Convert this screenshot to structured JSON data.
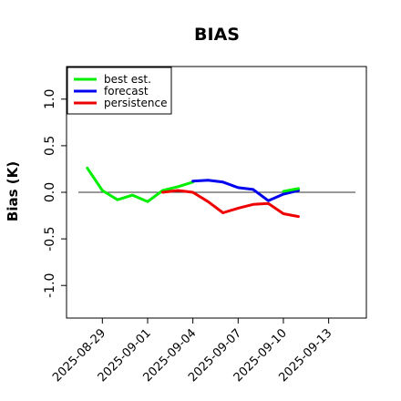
{
  "chart_data": {
    "type": "line",
    "title": "BIAS",
    "xlabel": "",
    "ylabel": "Bias (K)",
    "x_ticks": [
      "2025-08-29",
      "2025-09-01",
      "2025-09-04",
      "2025-09-07",
      "2025-09-10",
      "2025-09-13"
    ],
    "highlight_tick": "2025-09-04",
    "highlight_color": "#228b22",
    "y_ticks": [
      "-1.0",
      "-0.5",
      "0.0",
      "0.5",
      "1.0"
    ],
    "xlim": [
      "2025-08-26T15:00",
      "2025-09-15T12:00"
    ],
    "ylim": [
      -1.35,
      1.35
    ],
    "zero_line": true,
    "grid": false,
    "legend_position": "top-left",
    "series": [
      {
        "name": "best est.",
        "color": "#00ee00",
        "x": [
          "2025-08-28T00:00",
          "2025-08-29T00:00",
          "2025-08-30T00:00",
          "2025-08-31T00:00",
          "2025-09-01T00:00",
          "2025-09-02T00:00",
          "2025-09-03T00:00",
          "2025-09-04T00:00"
        ],
        "y": [
          0.26,
          0.02,
          -0.08,
          -0.03,
          -0.1,
          0.02,
          0.06,
          0.11
        ]
      },
      {
        "name": "forecast",
        "color": "#0000ee",
        "x": [
          "2025-09-04T00:00",
          "2025-09-05T00:00",
          "2025-09-06T00:00",
          "2025-09-07T00:00",
          "2025-09-08T00:00",
          "2025-09-09T00:00",
          "2025-09-10T00:00",
          "2025-09-11T00:00"
        ],
        "y": [
          0.12,
          0.13,
          0.11,
          0.05,
          0.03,
          -0.09,
          -0.02,
          0.02
        ]
      },
      {
        "name": "persistence",
        "color": "#ee0000",
        "x": [
          "2025-09-02T00:00",
          "2025-09-03T00:00",
          "2025-09-04T00:00",
          "2025-09-05T00:00",
          "2025-09-06T00:00",
          "2025-09-07T00:00",
          "2025-09-08T00:00",
          "2025-09-09T00:00",
          "2025-09-10T00:00",
          "2025-09-11T00:00"
        ],
        "y": [
          0.0,
          0.02,
          0.0,
          -0.1,
          -0.22,
          -0.17,
          -0.13,
          -0.12,
          -0.23,
          -0.26
        ]
      }
    ],
    "extra_segments": [
      {
        "color": "#00ee00",
        "x": [
          "2025-09-10T00:00",
          "2025-09-11T00:00"
        ],
        "y": [
          0.01,
          0.04
        ]
      }
    ]
  }
}
